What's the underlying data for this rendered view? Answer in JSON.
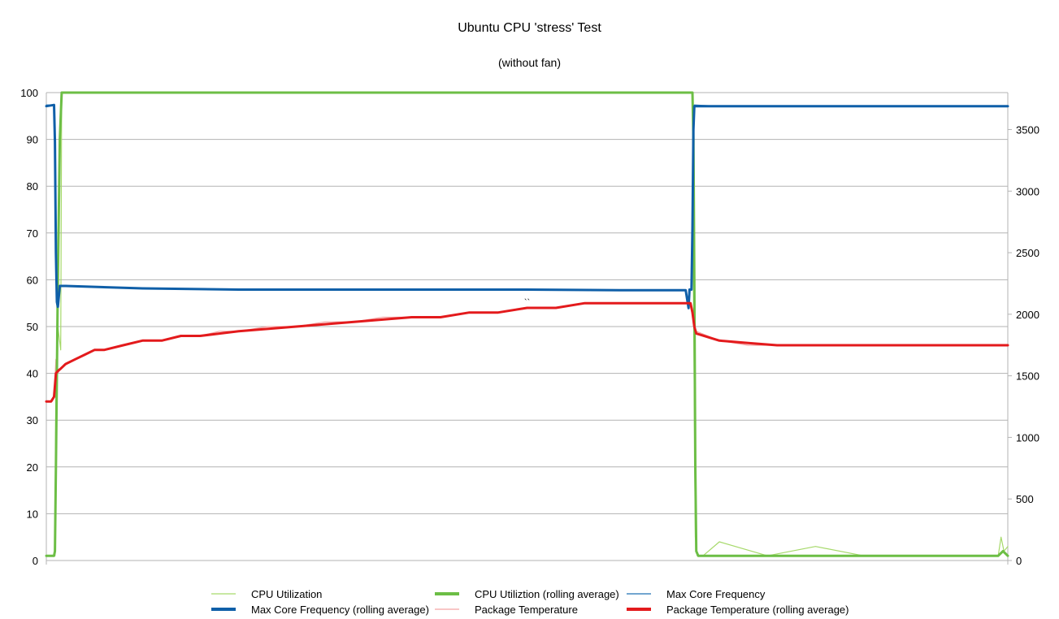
{
  "chart_data": {
    "type": "line",
    "title": "Ubuntu CPU 'stress' Test",
    "subtitle": "(without fan)",
    "grid": true,
    "legend_position": "bottom",
    "x_range": [
      0,
      1000
    ],
    "y_left": {
      "range": [
        0,
        100
      ],
      "ticks": [
        0,
        10,
        20,
        30,
        40,
        50,
        60,
        70,
        80,
        90,
        100
      ]
    },
    "y_right": {
      "range": [
        0,
        3800
      ],
      "ticks": [
        0,
        500,
        1000,
        1500,
        2000,
        2500,
        3000,
        3500
      ]
    },
    "annotation": "``",
    "series": [
      {
        "name": "CPU Utilization",
        "axis": "left",
        "color": "#a6d96a",
        "style": "thin",
        "x": [
          0,
          9,
          10,
          12,
          15,
          16,
          18,
          20,
          50,
          100,
          200,
          300,
          400,
          500,
          600,
          672,
          673,
          675,
          677,
          679,
          681,
          683,
          700,
          750,
          800,
          850,
          900,
          950,
          990,
          993,
          996,
          1000
        ],
        "y": [
          1,
          1,
          40,
          50,
          45,
          100,
          100,
          100,
          100,
          100,
          100,
          100,
          100,
          100,
          100,
          100,
          60,
          5,
          1,
          1,
          1,
          1,
          4,
          1,
          3,
          1,
          1,
          1,
          1,
          5,
          2,
          3
        ]
      },
      {
        "name": "CPU Utiliztion (rolling average)",
        "axis": "left",
        "color": "#6cbe45",
        "style": "thick",
        "x": [
          0,
          8,
          9,
          10,
          12,
          14,
          16,
          100,
          200,
          300,
          400,
          500,
          600,
          672,
          673,
          674,
          675,
          676,
          678,
          700,
          750,
          800,
          850,
          900,
          950,
          990,
          995,
          1000
        ],
        "y": [
          1,
          1,
          2,
          20,
          60,
          90,
          100,
          100,
          100,
          100,
          100,
          100,
          100,
          100,
          90,
          60,
          20,
          2,
          1,
          1,
          1,
          1,
          1,
          1,
          1,
          1,
          2,
          1
        ]
      },
      {
        "name": "Max Core Frequency",
        "axis": "right",
        "color": "#1f6fb5",
        "style": "thin",
        "x": [
          0,
          8,
          9,
          10,
          11,
          12,
          14,
          20,
          100,
          200,
          300,
          400,
          500,
          600,
          665,
          668,
          669,
          671,
          672,
          673,
          674,
          700,
          800,
          900,
          1000
        ],
        "y": [
          3700,
          3700,
          3400,
          2500,
          2100,
          2050,
          2230,
          2230,
          2210,
          2200,
          2200,
          2200,
          2200,
          2195,
          2195,
          2050,
          2200,
          2200,
          2700,
          3500,
          3700,
          3690,
          3690,
          3690,
          3690
        ]
      },
      {
        "name": "Max Core Frequency (rolling average)",
        "axis": "right",
        "color": "#0f5fa8",
        "style": "thick",
        "x": [
          0,
          8,
          9,
          10,
          11,
          12,
          14,
          20,
          100,
          200,
          300,
          400,
          500,
          600,
          665,
          668,
          669,
          671,
          672,
          673,
          674,
          700,
          800,
          900,
          1000
        ],
        "y": [
          3690,
          3700,
          3400,
          2500,
          2100,
          2060,
          2230,
          2230,
          2210,
          2200,
          2200,
          2200,
          2200,
          2195,
          2195,
          2050,
          2200,
          2200,
          2700,
          3500,
          3690,
          3690,
          3690,
          3690,
          3690
        ]
      },
      {
        "name": "Package Temperature",
        "axis": "left",
        "color": "#f4a3a3",
        "style": "thin",
        "x": [
          0,
          5,
          8,
          10,
          12,
          15,
          20,
          30,
          40,
          50,
          60,
          80,
          100,
          120,
          140,
          160,
          180,
          200,
          230,
          260,
          290,
          320,
          350,
          380,
          410,
          440,
          470,
          500,
          530,
          560,
          590,
          620,
          650,
          670,
          672,
          674,
          676,
          700,
          730,
          760,
          790,
          820,
          850,
          880,
          910,
          940,
          970,
          1000
        ],
        "y": [
          34,
          34,
          35,
          43,
          40,
          41,
          42,
          43,
          44,
          45,
          45,
          46,
          47,
          47,
          48,
          48,
          49,
          49,
          50,
          50,
          51,
          51,
          52,
          52,
          52,
          53,
          53,
          54,
          54,
          55,
          55,
          55,
          55,
          55,
          53,
          50,
          49,
          47,
          46,
          46,
          46,
          46,
          46,
          46,
          46,
          46,
          46,
          46
        ]
      },
      {
        "name": "Package Temperature (rolling average)",
        "axis": "left",
        "color": "#e31a1c",
        "style": "thick",
        "x": [
          0,
          5,
          8,
          10,
          12,
          15,
          20,
          30,
          40,
          50,
          60,
          80,
          100,
          120,
          140,
          160,
          180,
          200,
          230,
          260,
          290,
          320,
          350,
          380,
          410,
          440,
          470,
          500,
          530,
          560,
          590,
          620,
          650,
          670,
          672,
          674,
          676,
          700,
          730,
          760,
          790,
          820,
          850,
          880,
          910,
          940,
          970,
          1000
        ],
        "y": [
          34,
          34,
          35,
          40,
          40.5,
          41,
          42,
          43,
          44,
          45,
          45,
          46,
          47,
          47,
          48,
          48,
          48.5,
          49,
          49.5,
          50,
          50.5,
          51,
          51.5,
          52,
          52,
          53,
          53,
          54,
          54,
          55,
          55,
          55,
          55,
          55,
          53,
          50,
          48.5,
          47,
          46.5,
          46,
          46,
          46,
          46,
          46,
          46,
          46,
          46,
          46
        ]
      }
    ]
  }
}
